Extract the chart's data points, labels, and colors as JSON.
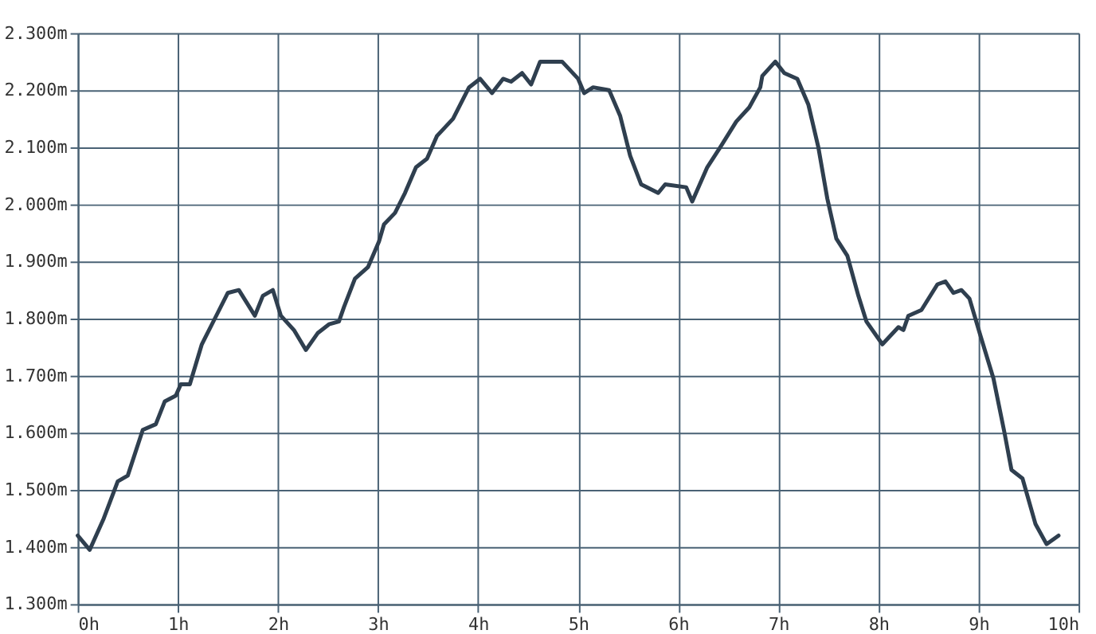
{
  "chart_data": {
    "type": "line",
    "x": [
      0,
      0.12,
      0.26,
      0.4,
      0.5,
      0.65,
      0.78,
      0.87,
      0.98,
      1.03,
      1.12,
      1.24,
      1.37,
      1.5,
      1.61,
      1.77,
      1.85,
      1.95,
      2.03,
      2.16,
      2.28,
      2.4,
      2.51,
      2.61,
      2.66,
      2.77,
      2.9,
      3.01,
      3.06,
      3.17,
      3.27,
      3.38,
      3.49,
      3.59,
      3.75,
      3.91,
      4.02,
      4.14,
      4.25,
      4.33,
      4.44,
      4.53,
      4.62,
      4.84,
      5.0,
      5.06,
      5.15,
      5.31,
      5.42,
      5.52,
      5.63,
      5.8,
      5.87,
      6.08,
      6.14,
      6.29,
      6.42,
      6.58,
      6.71,
      6.82,
      6.84,
      6.97,
      7.06,
      7.19,
      7.3,
      7.4,
      7.49,
      7.58,
      7.69,
      7.8,
      7.88,
      8.04,
      8.2,
      8.25,
      8.3,
      8.43,
      8.59,
      8.67,
      8.75,
      8.83,
      8.91,
      9.02,
      9.15,
      9.26,
      9.33,
      9.44,
      9.57,
      9.68,
      9.8
    ],
    "series": [
      {
        "color": "#2f3f4f",
        "values": [
          1.42,
          1.395,
          1.45,
          1.515,
          1.525,
          1.605,
          1.615,
          1.655,
          1.665,
          1.685,
          1.685,
          1.755,
          1.8,
          1.845,
          1.85,
          1.805,
          1.84,
          1.85,
          1.805,
          1.78,
          1.745,
          1.775,
          1.79,
          1.795,
          1.82,
          1.87,
          1.89,
          1.935,
          1.965,
          1.985,
          2.02,
          2.065,
          2.08,
          2.12,
          2.15,
          2.205,
          2.22,
          2.195,
          2.22,
          2.215,
          2.23,
          2.21,
          2.25,
          2.25,
          2.22,
          2.195,
          2.205,
          2.2,
          2.155,
          2.085,
          2.035,
          2.02,
          2.035,
          2.03,
          2.005,
          2.065,
          2.1,
          2.145,
          2.17,
          2.205,
          2.225,
          2.25,
          2.23,
          2.22,
          2.175,
          2.1,
          2.01,
          1.94,
          1.91,
          1.84,
          1.795,
          1.755,
          1.785,
          1.78,
          1.805,
          1.815,
          1.86,
          1.865,
          1.845,
          1.85,
          1.835,
          1.77,
          1.695,
          1.6,
          1.535,
          1.52,
          1.44,
          1.405,
          1.42
        ]
      }
    ],
    "xlim": [
      0,
      10
    ],
    "xticks": [
      {
        "value": 0,
        "label": "0h"
      },
      {
        "value": 1,
        "label": "1h"
      },
      {
        "value": 2,
        "label": "2h"
      },
      {
        "value": 3,
        "label": "3h"
      },
      {
        "value": 4,
        "label": "4h"
      },
      {
        "value": 5,
        "label": "5h"
      },
      {
        "value": 6,
        "label": "6h"
      },
      {
        "value": 7,
        "label": "7h"
      },
      {
        "value": 8,
        "label": "8h"
      },
      {
        "value": 9,
        "label": "9h"
      },
      {
        "value": 10,
        "label": "10h"
      }
    ],
    "ylim": [
      1.3,
      2.3
    ],
    "yticks": [
      {
        "value": 1.3,
        "label": "1.300m"
      },
      {
        "value": 1.4,
        "label": "1.400m"
      },
      {
        "value": 1.5,
        "label": "1.500m"
      },
      {
        "value": 1.6,
        "label": "1.600m"
      },
      {
        "value": 1.7,
        "label": "1.700m"
      },
      {
        "value": 1.8,
        "label": "1.800m"
      },
      {
        "value": 1.9,
        "label": "1.900m"
      },
      {
        "value": 2.0,
        "label": "2.000m"
      },
      {
        "value": 2.1,
        "label": "2.100m"
      },
      {
        "value": 2.2,
        "label": "2.200m"
      },
      {
        "value": 2.3,
        "label": "2.300m"
      }
    ],
    "grid": true,
    "line_style": "solid",
    "marker": "none"
  }
}
